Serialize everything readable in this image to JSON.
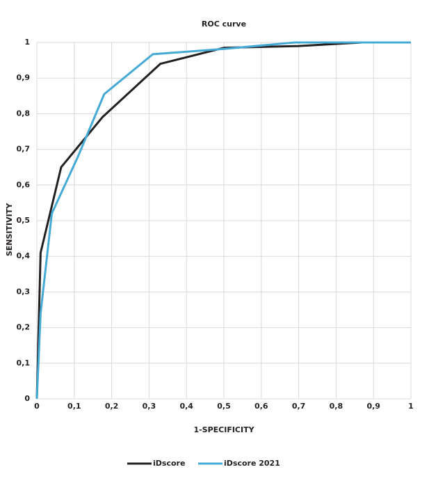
{
  "chart_data": {
    "type": "line",
    "title": "ROC curve",
    "x_label": "1-SPECIFICITY",
    "y_label": "SENSITIVITY",
    "series": [
      {
        "name": "iDscore",
        "color": "#231f20",
        "x": [
          0,
          0.01,
          0.065,
          0.175,
          0.33,
          0.5,
          0.7,
          0.87,
          1
        ],
        "values": [
          0,
          0.41,
          0.65,
          0.79,
          0.94,
          0.985,
          0.99,
          1,
          1
        ]
      },
      {
        "name": "iDscore 2021",
        "color": "#45a9d5",
        "x": [
          0,
          0.01,
          0.04,
          0.11,
          0.18,
          0.31,
          0.5,
          0.69,
          1
        ],
        "values": [
          0,
          0.24,
          0.52,
          0.68,
          0.855,
          0.967,
          0.982,
          1,
          1
        ]
      }
    ],
    "xlim": [
      0,
      1
    ],
    "xticks": [
      0,
      {
        "value": 0.1,
        "label": "0,1"
      },
      {
        "value": 0.2,
        "label": "0,2"
      },
      {
        "value": 0.3,
        "label": "0,3"
      },
      {
        "value": 0.4,
        "label": "0,4"
      },
      {
        "value": 0.5,
        "label": "0,5"
      },
      {
        "value": 0.6,
        "label": "0,6"
      },
      {
        "value": 0.7,
        "label": "0,7"
      },
      {
        "value": 0.8,
        "label": "0,8"
      },
      {
        "value": 0.9,
        "label": "0,9"
      },
      1
    ],
    "ylim": [
      0,
      1
    ],
    "yticks": [
      0,
      {
        "value": 0.1,
        "label": "0,1"
      },
      {
        "value": 0.2,
        "label": "0,2"
      },
      {
        "value": 0.3,
        "label": "0,3"
      },
      {
        "value": 0.4,
        "label": "0,4"
      },
      {
        "value": 0.5,
        "label": "0,5"
      },
      {
        "value": 0.6,
        "label": "0,6"
      },
      {
        "value": 0.7,
        "label": "0,7"
      },
      {
        "value": 0.8,
        "label": "0,8"
      },
      {
        "value": 0.9,
        "label": "0,9"
      },
      1
    ],
    "grid": true,
    "legend": "bottom"
  }
}
